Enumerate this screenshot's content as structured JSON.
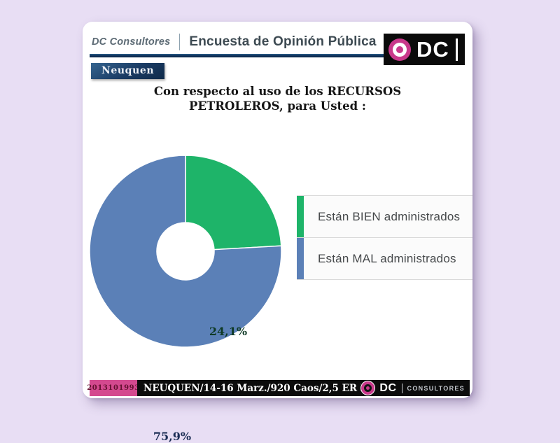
{
  "header": {
    "brand": "DC Consultores",
    "title": "Encuesta de Opinión Pública",
    "badge": "Neuquen"
  },
  "logo": {
    "text": "DC"
  },
  "question": {
    "line1": "Con respecto al uso de los RECURSOS",
    "line2": "PETROLEROS, para Usted :"
  },
  "chart_data": {
    "type": "pie",
    "donut": true,
    "title": "Con respecto al uso de los RECURSOS PETROLEROS, para Usted :",
    "labels": [
      "Están BIEN administrados",
      "Están MAL administrados"
    ],
    "values": [
      24.1,
      75.9
    ],
    "value_labels": [
      "24,1%",
      "75,9%"
    ],
    "colors": [
      "#1eb469",
      "#5b80b7"
    ],
    "start_angle_deg": 0,
    "direction": "clockwise",
    "legend_position": "right",
    "inner_radius_ratio": 0.3
  },
  "footer": {
    "code": "2013101993",
    "info": "NEUQUEN/14-16 Marz./920 Caos/2,5 ER DISP. MOVIL",
    "brand": "DC",
    "brand_suffix": "CONSULTORES"
  },
  "colors": {
    "page_bg": "#e8def4",
    "card_bg": "#ffffff",
    "accent_pink": "#c9388b",
    "footer_pink": "#d4498f",
    "navy_badge": "#16365c",
    "header_rule_navy": "#10315a",
    "footer_black": "#0c0c0c",
    "label_green_text": "#0f3a26",
    "label_blue_text": "#1c2e55"
  }
}
